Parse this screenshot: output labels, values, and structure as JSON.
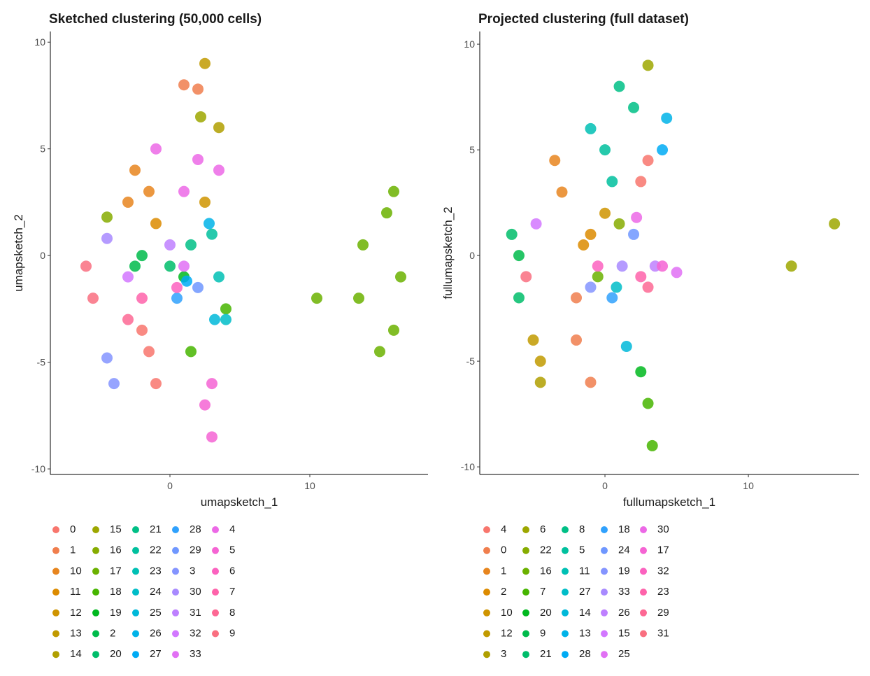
{
  "chart_data": [
    {
      "type": "scatter",
      "title": "Sketched clustering (50,000 cells)",
      "x_label": "umapsketch_1",
      "y_label": "umapsketch_2",
      "xlim": [
        -8.55,
        18.45
      ],
      "ylim": [
        -10.26,
        10.5
      ],
      "xticks": [
        0,
        10
      ],
      "yticks": [
        -10,
        -5,
        0,
        5,
        10
      ],
      "series": [
        {
          "name": "0",
          "color": "#F8766D",
          "x": [
            -1.5,
            -1,
            -2
          ],
          "values": [
            -4.5,
            -6,
            -3.5
          ]
        },
        {
          "name": "1",
          "color": "#F07E4D",
          "x": [
            1,
            2
          ],
          "values": [
            8,
            7.8
          ]
        },
        {
          "name": "10",
          "color": "#E7851E",
          "x": [
            -2.5,
            -3,
            -1.5
          ],
          "values": [
            4,
            2.5,
            3
          ]
        },
        {
          "name": "11",
          "color": "#DC8B00",
          "x": [
            -1
          ],
          "values": [
            1.5
          ]
        },
        {
          "name": "12",
          "color": "#CF9400",
          "x": [
            2.5
          ],
          "values": [
            2.5
          ]
        },
        {
          "name": "13",
          "color": "#C19A00",
          "x": [
            2.5
          ],
          "values": [
            9
          ]
        },
        {
          "name": "14",
          "color": "#B09F00",
          "x": [
            3.5
          ],
          "values": [
            6
          ]
        },
        {
          "name": "15",
          "color": "#9DA700",
          "x": [
            2.2
          ],
          "values": [
            6.5
          ]
        },
        {
          "name": "16",
          "color": "#86AC00",
          "x": [
            -4.5
          ],
          "values": [
            1.8
          ]
        },
        {
          "name": "17",
          "color": "#6BB100",
          "x": [
            15,
            13.5,
            13.8,
            15.5,
            16,
            16.5,
            16,
            10.5
          ],
          "values": [
            -4.5,
            -2,
            0.5,
            2,
            3,
            -1,
            -3.5,
            -2
          ]
        },
        {
          "name": "18",
          "color": "#46B500",
          "x": [
            4,
            1.5
          ],
          "values": [
            -2.5,
            -4.5
          ]
        },
        {
          "name": "19",
          "color": "#00B81F",
          "x": [
            1
          ],
          "values": [
            -1
          ]
        },
        {
          "name": "2",
          "color": "#00BB4B",
          "x": [
            -2,
            -2.5
          ],
          "values": [
            0,
            -0.5
          ]
        },
        {
          "name": "20",
          "color": "#00BD6A",
          "x": [
            0
          ],
          "values": [
            -0.5
          ]
        },
        {
          "name": "21",
          "color": "#00BF86",
          "x": [
            1.5
          ],
          "values": [
            0.5
          ]
        },
        {
          "name": "22",
          "color": "#00C09E",
          "x": [
            3
          ],
          "values": [
            1
          ]
        },
        {
          "name": "23",
          "color": "#00C0B4",
          "x": [
            3.5
          ],
          "values": [
            -1
          ]
        },
        {
          "name": "24",
          "color": "#00BDC8",
          "x": [
            4
          ],
          "values": [
            -3
          ]
        },
        {
          "name": "25",
          "color": "#00B9D9",
          "x": [
            3.2
          ],
          "values": [
            -3
          ]
        },
        {
          "name": "26",
          "color": "#00B3E8",
          "x": [
            2.8
          ],
          "values": [
            1.5
          ]
        },
        {
          "name": "27",
          "color": "#00ABF4",
          "x": [
            1.2
          ],
          "values": [
            -1.2
          ]
        },
        {
          "name": "28",
          "color": "#30A1FD",
          "x": [
            0.5
          ],
          "values": [
            -2
          ]
        },
        {
          "name": "29",
          "color": "#6F97FF",
          "x": [
            2
          ],
          "values": [
            -1.5
          ]
        },
        {
          "name": "3",
          "color": "#8494FF",
          "x": [
            -4.5,
            -4
          ],
          "values": [
            -4.8,
            -6
          ]
        },
        {
          "name": "30",
          "color": "#A88AFF",
          "x": [
            -4.5
          ],
          "values": [
            0.8
          ]
        },
        {
          "name": "31",
          "color": "#BE80FF",
          "x": [
            0
          ],
          "values": [
            0.5
          ]
        },
        {
          "name": "32",
          "color": "#D277FF",
          "x": [
            -3
          ],
          "values": [
            -1
          ]
        },
        {
          "name": "33",
          "color": "#E170F4",
          "x": [
            1
          ],
          "values": [
            -0.5
          ]
        },
        {
          "name": "4",
          "color": "#EC69E6",
          "x": [
            -1,
            2,
            3.5,
            1
          ],
          "values": [
            5,
            4.5,
            4,
            3
          ]
        },
        {
          "name": "5",
          "color": "#F564D3",
          "x": [
            3,
            3,
            2.5
          ],
          "values": [
            -6,
            -8.5,
            -7
          ]
        },
        {
          "name": "6",
          "color": "#FB62BF",
          "x": [
            0.5
          ],
          "values": [
            -1.5
          ]
        },
        {
          "name": "7",
          "color": "#FE63AA",
          "x": [
            -2
          ],
          "values": [
            -2
          ]
        },
        {
          "name": "8",
          "color": "#FD6894",
          "x": [
            -3
          ],
          "values": [
            -3
          ]
        },
        {
          "name": "9",
          "color": "#F96F80",
          "x": [
            -6,
            -5.5
          ],
          "values": [
            -0.5,
            -2
          ]
        }
      ]
    },
    {
      "type": "scatter",
      "title": "Projected clustering (full dataset)",
      "x_label": "fullumapsketch_1",
      "y_label": "fullumapsketch_2",
      "xlim": [
        -8.73,
        17.7
      ],
      "ylim": [
        -10.36,
        10.6
      ],
      "xticks": [
        0,
        10
      ],
      "yticks": [
        -10,
        -5,
        0,
        5,
        10
      ],
      "series": [
        {
          "name": "4",
          "color": "#F8766D",
          "x": [
            3,
            2.5
          ],
          "values": [
            4.5,
            3.5
          ]
        },
        {
          "name": "0",
          "color": "#F07E4D",
          "x": [
            -2,
            -1,
            -2
          ],
          "values": [
            -4,
            -6,
            -2
          ]
        },
        {
          "name": "1",
          "color": "#E7851E",
          "x": [
            -3,
            -3.5
          ],
          "values": [
            3,
            4.5
          ]
        },
        {
          "name": "2",
          "color": "#DC8B00",
          "x": [
            -1.5,
            -1
          ],
          "values": [
            0.5,
            1
          ]
        },
        {
          "name": "10",
          "color": "#CF9400",
          "x": [
            0
          ],
          "values": [
            2
          ]
        },
        {
          "name": "12",
          "color": "#C19A00",
          "x": [
            -4.5,
            -5
          ],
          "values": [
            -5,
            -4
          ]
        },
        {
          "name": "3",
          "color": "#B09F00",
          "x": [
            -4.5
          ],
          "values": [
            -6
          ]
        },
        {
          "name": "6",
          "color": "#9DA700",
          "x": [
            16,
            3,
            13
          ],
          "values": [
            1.5,
            9,
            -0.5
          ]
        },
        {
          "name": "22",
          "color": "#86AC00",
          "x": [
            1
          ],
          "values": [
            1.5
          ]
        },
        {
          "name": "16",
          "color": "#6BB100",
          "x": [
            -0.5
          ],
          "values": [
            -1
          ]
        },
        {
          "name": "7",
          "color": "#46B500",
          "x": [
            3,
            3.3
          ],
          "values": [
            -7,
            -9
          ]
        },
        {
          "name": "20",
          "color": "#00B81F",
          "x": [
            2.5
          ],
          "values": [
            -5.5
          ]
        },
        {
          "name": "9",
          "color": "#00BB4B",
          "x": [
            -6
          ],
          "values": [
            0
          ]
        },
        {
          "name": "21",
          "color": "#00BD6A",
          "x": [
            -6,
            -6.5
          ],
          "values": [
            -2,
            1
          ]
        },
        {
          "name": "8",
          "color": "#00BF86",
          "x": [
            1,
            2
          ],
          "values": [
            8,
            7
          ]
        },
        {
          "name": "5",
          "color": "#00C09E",
          "x": [
            0,
            0.5
          ],
          "values": [
            5,
            3.5
          ]
        },
        {
          "name": "11",
          "color": "#00C0B4",
          "x": [
            -1
          ],
          "values": [
            6
          ]
        },
        {
          "name": "27",
          "color": "#00BDC8",
          "x": [
            0.8
          ],
          "values": [
            -1.5
          ]
        },
        {
          "name": "14",
          "color": "#00B9D9",
          "x": [
            1.5
          ],
          "values": [
            -4.3
          ]
        },
        {
          "name": "13",
          "color": "#00B3E8",
          "x": [
            4.3
          ],
          "values": [
            6.5
          ]
        },
        {
          "name": "28",
          "color": "#00ABF4",
          "x": [
            4
          ],
          "values": [
            5
          ]
        },
        {
          "name": "18",
          "color": "#30A1FD",
          "x": [
            0.5
          ],
          "values": [
            -2
          ]
        },
        {
          "name": "24",
          "color": "#6F97FF",
          "x": [
            2
          ],
          "values": [
            1
          ]
        },
        {
          "name": "19",
          "color": "#8494FF",
          "x": [
            -1
          ],
          "values": [
            -1.5
          ]
        },
        {
          "name": "33",
          "color": "#A88AFF",
          "x": [
            1.2
          ],
          "values": [
            -0.5
          ]
        },
        {
          "name": "26",
          "color": "#BE80FF",
          "x": [
            3.5
          ],
          "values": [
            -0.5
          ]
        },
        {
          "name": "15",
          "color": "#D277FF",
          "x": [
            -4.8
          ],
          "values": [
            1.5
          ]
        },
        {
          "name": "25",
          "color": "#E170F4",
          "x": [
            5
          ],
          "values": [
            -0.8
          ]
        },
        {
          "name": "30",
          "color": "#EC69E6",
          "x": [
            2.2
          ],
          "values": [
            1.8
          ]
        },
        {
          "name": "17",
          "color": "#F564D3",
          "x": [
            4
          ],
          "values": [
            -0.5
          ]
        },
        {
          "name": "32",
          "color": "#FB62BF",
          "x": [
            -0.5
          ],
          "values": [
            -0.5
          ]
        },
        {
          "name": "23",
          "color": "#FE63AA",
          "x": [
            2.5
          ],
          "values": [
            -1
          ]
        },
        {
          "name": "29",
          "color": "#FD6894",
          "x": [
            3
          ],
          "values": [
            -1.5
          ]
        },
        {
          "name": "31",
          "color": "#F96F80",
          "x": [
            -5.5
          ],
          "values": [
            -1
          ]
        }
      ]
    }
  ]
}
